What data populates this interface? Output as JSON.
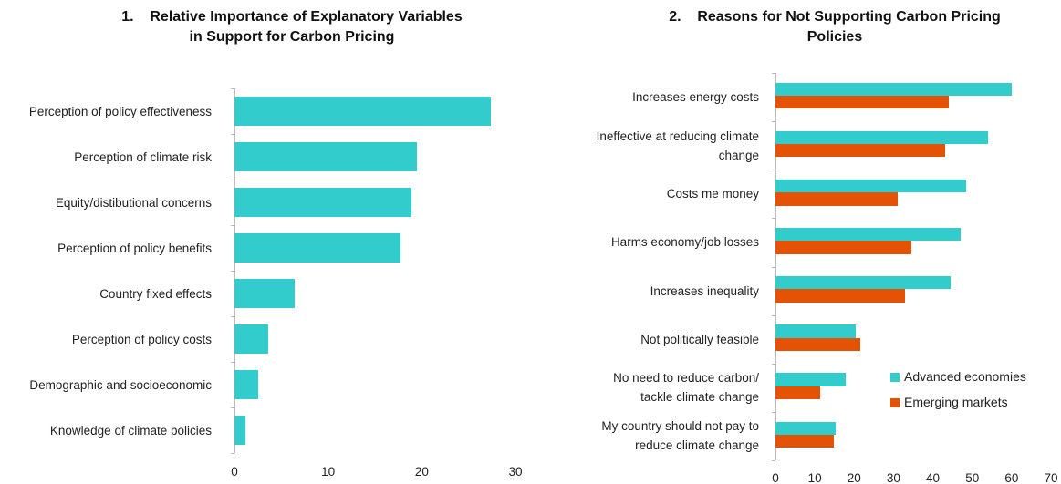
{
  "chart_data": [
    {
      "type": "bar",
      "orientation": "horizontal",
      "title": "1.    Relative Importance of Explanatory Variables\nin Support for Carbon Pricing",
      "categories": [
        "Perception of policy effectiveness",
        "Perception of climate risk",
        "Equity/distibutional concerns",
        "Perception of policy benefits",
        "Country fixed effects",
        "Perception of policy costs",
        "Demographic and socioeconomic",
        "Knowledge of climate policies"
      ],
      "values": [
        27.4,
        19.5,
        18.9,
        17.7,
        6.4,
        3.6,
        2.5,
        1.2
      ],
      "color": "#33cccc",
      "xlim": [
        0,
        30
      ],
      "xticks": [
        0,
        10,
        20,
        30
      ],
      "grid": false
    },
    {
      "type": "grouped_bar",
      "orientation": "horizontal",
      "title": "2.    Reasons for Not Supporting Carbon Pricing\nPolicies",
      "categories": [
        "Increases energy costs",
        "Ineffective at reducing climate\nchange",
        "Costs me money",
        "Harms economy/job losses",
        "Increases inequality",
        "Not politically feasible",
        "No need to reduce carbon/\ntackle climate change",
        "My country should not pay to\nreduce climate change"
      ],
      "series": [
        {
          "name": "Advanced economies",
          "color": "#33cccc",
          "values": [
            60,
            54,
            48.5,
            47,
            44.5,
            20.4,
            17.9,
            15.3
          ]
        },
        {
          "name": "Emerging markets",
          "color": "#e35205",
          "values": [
            44,
            43,
            31,
            34.5,
            33,
            21.6,
            11.4,
            14.8
          ]
        }
      ],
      "xlim": [
        0,
        70
      ],
      "xticks": [
        0,
        10,
        20,
        30,
        40,
        50,
        60,
        70
      ],
      "grid": false,
      "legend": "right"
    }
  ]
}
